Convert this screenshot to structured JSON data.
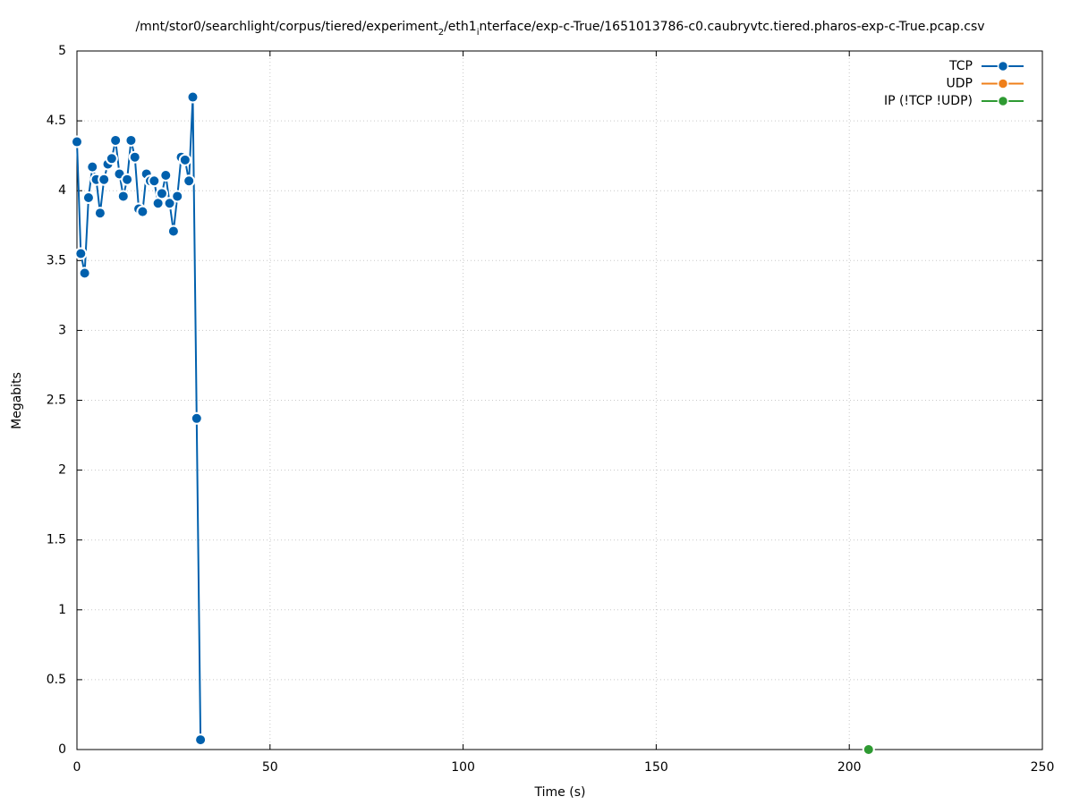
{
  "chart_data": {
    "type": "line",
    "title": [
      "/mnt/stor0/searchlight/corpus/tiered/experiment",
      "2",
      "/eth1",
      "i",
      "nterface/exp-c-True/1651013786-c0.caubryvtc.tiered.pharos-exp-c-True.pcap.csv"
    ],
    "xlabel": "Time (s)",
    "ylabel": "Megabits",
    "xlim": [
      0,
      250
    ],
    "xticks": [
      0,
      50,
      100,
      150,
      200,
      250
    ],
    "ylim": [
      0,
      5
    ],
    "yticks": [
      0,
      0.5,
      1,
      1.5,
      2,
      2.5,
      3,
      3.5,
      4,
      4.5,
      5
    ],
    "grid": true,
    "legend": "top-right",
    "series": [
      {
        "name": "TCP",
        "color": "#0060ad",
        "x": [
          0,
          1,
          2,
          3,
          4,
          5,
          6,
          7,
          8,
          9,
          10,
          11,
          12,
          13,
          14,
          15,
          16,
          17,
          18,
          19,
          20,
          21,
          22,
          23,
          24,
          25,
          26,
          27,
          28,
          29,
          30,
          31,
          32
        ],
        "values": [
          4.35,
          3.55,
          3.41,
          3.95,
          4.17,
          4.08,
          3.84,
          4.08,
          4.19,
          4.23,
          4.36,
          4.12,
          3.96,
          4.08,
          4.36,
          4.24,
          3.87,
          3.85,
          4.12,
          4.07,
          4.07,
          3.91,
          3.98,
          4.11,
          3.91,
          3.71,
          3.96,
          4.24,
          4.22,
          4.07,
          4.67,
          2.37,
          0.07
        ]
      },
      {
        "name": "UDP",
        "color": "#ef7f1a",
        "x": [],
        "values": []
      },
      {
        "name": "IP (!TCP  !UDP)",
        "color": "#2e9a32",
        "x": [
          205
        ],
        "values": [
          0
        ]
      }
    ]
  }
}
